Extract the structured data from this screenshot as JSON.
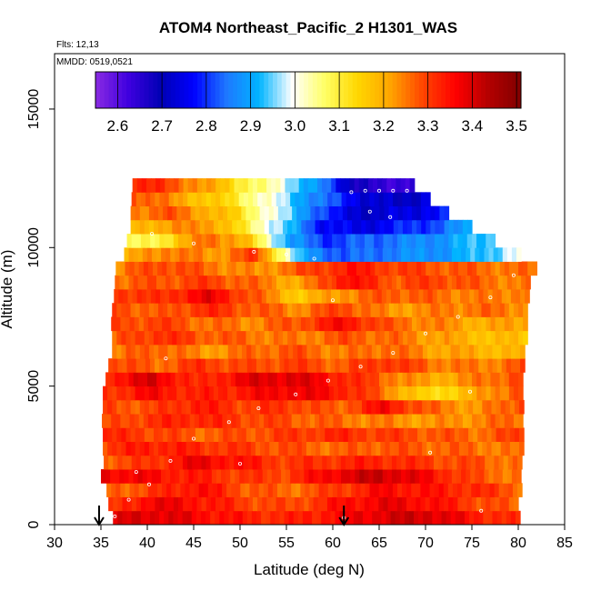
{
  "chart_data": {
    "type": "heatmap",
    "title": "ATOM4 Northeast_Pacific_2 H1301_WAS",
    "subtitle_flights": "Flts: 12,13",
    "subtitle_dates": "MMDD: 0519,0521",
    "xlabel": "Latitude (deg N)",
    "ylabel": "Altitude (m)",
    "xlim": [
      30,
      85
    ],
    "ylim": [
      0,
      17000
    ],
    "xticks": [
      30,
      35,
      40,
      45,
      50,
      55,
      60,
      65,
      70,
      75,
      80,
      85
    ],
    "yticks": [
      0,
      5000,
      10000,
      15000
    ],
    "colorbar": {
      "min": 2.55,
      "max": 3.51,
      "ticks": [
        2.6,
        2.7,
        2.8,
        2.9,
        3.0,
        3.1,
        3.2,
        3.3,
        3.4,
        3.5
      ],
      "tick_labels": [
        "2.6",
        "2.7",
        "2.8",
        "2.9",
        "3.0",
        "3.1",
        "3.2",
        "3.3",
        "3.4",
        "3.5"
      ],
      "colors": [
        "#8a2be2",
        "#3f00e0",
        "#0000b4",
        "#0000ff",
        "#1e78ff",
        "#00b4ff",
        "#ffffff",
        "#ffff66",
        "#ffd700",
        "#ffa500",
        "#ff4500",
        "#ff0000",
        "#b40000",
        "#800000"
      ]
    },
    "rows": [
      {
        "alt": 250,
        "lat": [
          36.3,
          80.2
        ],
        "v": [
          3.38,
          3.4,
          3.36,
          3.33,
          3.32,
          3.36,
          3.4,
          3.41,
          3.34,
          3.3
        ]
      },
      {
        "alt": 750,
        "lat": [
          35.8,
          80.0
        ],
        "v": [
          3.28,
          3.38,
          3.35,
          3.3,
          3.28,
          3.34,
          3.38,
          3.36,
          3.3,
          3.26
        ]
      },
      {
        "alt": 1250,
        "lat": [
          35.6,
          80.4
        ],
        "v": [
          3.26,
          3.3,
          3.36,
          3.28,
          3.26,
          3.3,
          3.36,
          3.34,
          3.32,
          3.27
        ]
      },
      {
        "alt": 1750,
        "lat": [
          35.0,
          80.3
        ],
        "v": [
          3.38,
          3.36,
          3.33,
          3.3,
          3.3,
          3.38,
          3.42,
          3.36,
          3.28,
          3.25
        ]
      },
      {
        "alt": 2250,
        "lat": [
          35.3,
          80.4
        ],
        "v": [
          3.28,
          3.3,
          3.38,
          3.34,
          3.3,
          3.32,
          3.33,
          3.3,
          3.28,
          3.25
        ]
      },
      {
        "alt": 2750,
        "lat": [
          35.2,
          80.6
        ],
        "v": [
          3.3,
          3.34,
          3.32,
          3.3,
          3.28,
          3.26,
          3.28,
          3.27,
          3.26,
          3.24
        ]
      },
      {
        "alt": 3250,
        "lat": [
          35.2,
          80.6
        ],
        "v": [
          3.32,
          3.3,
          3.27,
          3.28,
          3.3,
          3.32,
          3.3,
          3.28,
          3.26,
          3.3
        ]
      },
      {
        "alt": 3750,
        "lat": [
          35.1,
          80.5
        ],
        "v": [
          3.27,
          3.31,
          3.33,
          3.3,
          3.28,
          3.26,
          3.24,
          3.22,
          3.24,
          3.27
        ]
      },
      {
        "alt": 4250,
        "lat": [
          35.2,
          80.6
        ],
        "v": [
          3.29,
          3.28,
          3.34,
          3.3,
          3.31,
          3.26,
          3.36,
          3.26,
          3.22,
          3.3
        ]
      },
      {
        "alt": 4750,
        "lat": [
          35.2,
          80.5
        ],
        "v": [
          3.3,
          3.36,
          3.32,
          3.34,
          3.38,
          3.35,
          3.26,
          3.12,
          3.2,
          3.3
        ]
      },
      {
        "alt": 5250,
        "lat": [
          35.5,
          80.5
        ],
        "v": [
          3.33,
          3.4,
          3.3,
          3.38,
          3.4,
          3.34,
          3.27,
          3.2,
          3.24,
          3.3
        ]
      },
      {
        "alt": 5750,
        "lat": [
          35.8,
          80.7
        ],
        "v": [
          3.3,
          3.26,
          3.31,
          3.28,
          3.3,
          3.27,
          3.32,
          3.26,
          3.24,
          3.28
        ]
      },
      {
        "alt": 6250,
        "lat": [
          36.2,
          80.7
        ],
        "v": [
          3.24,
          3.28,
          3.22,
          3.26,
          3.28,
          3.24,
          3.27,
          3.22,
          3.2,
          3.18
        ]
      },
      {
        "alt": 6750,
        "lat": [
          36.2,
          81.0
        ],
        "v": [
          3.26,
          3.32,
          3.28,
          3.26,
          3.24,
          3.28,
          3.26,
          3.22,
          3.18,
          3.17
        ]
      },
      {
        "alt": 7250,
        "lat": [
          36.1,
          81.0
        ],
        "v": [
          3.28,
          3.3,
          3.26,
          3.24,
          3.28,
          3.36,
          3.27,
          3.24,
          3.2,
          3.22
        ]
      },
      {
        "alt": 7750,
        "lat": [
          36.2,
          81.0
        ],
        "v": [
          3.3,
          3.26,
          3.32,
          3.28,
          3.24,
          3.3,
          3.22,
          3.24,
          3.26,
          3.24
        ]
      },
      {
        "alt": 8250,
        "lat": [
          36.4,
          81.2
        ],
        "v": [
          3.32,
          3.3,
          3.38,
          3.28,
          3.16,
          3.24,
          3.28,
          3.26,
          3.24,
          3.26
        ]
      },
      {
        "alt": 8750,
        "lat": [
          36.5,
          81.3
        ],
        "v": [
          3.26,
          3.28,
          3.3,
          3.26,
          3.2,
          3.36,
          3.28,
          3.3,
          3.26,
          3.24
        ]
      },
      {
        "alt": 9250,
        "lat": [
          36.6,
          82.0
        ],
        "v": [
          3.24,
          3.3,
          3.26,
          3.22,
          3.28,
          3.34,
          3.3,
          3.28,
          3.26,
          3.25
        ]
      },
      {
        "alt": 9750,
        "lat": [
          37.5,
          80.3
        ],
        "v": [
          3.18,
          3.26,
          3.22,
          3.3,
          2.9,
          2.82,
          2.86,
          2.88,
          2.92,
          3.0
        ]
      },
      {
        "alt": 10250,
        "lat": [
          37.8,
          77.5
        ],
        "v": [
          3.05,
          3.12,
          3.28,
          3.16,
          2.88,
          2.8,
          2.84,
          2.86,
          2.9,
          2.95
        ]
      },
      {
        "alt": 10750,
        "lat": [
          38.2,
          75.0
        ],
        "v": [
          3.18,
          3.22,
          3.24,
          3.1,
          2.95,
          2.78,
          2.74,
          2.78,
          2.82,
          2.9
        ]
      },
      {
        "alt": 11250,
        "lat": [
          38.2,
          72.5
        ],
        "v": [
          3.24,
          3.28,
          3.22,
          3.14,
          3.0,
          2.88,
          2.74,
          2.72,
          2.75,
          2.78
        ]
      },
      {
        "alt": 11750,
        "lat": [
          38.3,
          70.5
        ],
        "v": [
          3.3,
          3.24,
          3.18,
          3.12,
          3.02,
          2.92,
          2.82,
          2.74,
          2.7,
          2.75
        ]
      },
      {
        "alt": 12250,
        "lat": [
          38.4,
          68.8
        ],
        "v": [
          3.34,
          3.3,
          3.24,
          3.16,
          3.06,
          2.98,
          2.86,
          2.7,
          2.62,
          2.66
        ]
      }
    ],
    "samples_white_circles": [
      [
        36.5,
        300
      ],
      [
        38.0,
        900
      ],
      [
        40.2,
        1450
      ],
      [
        42.5,
        2300
      ],
      [
        45.0,
        3100
      ],
      [
        48.8,
        3700
      ],
      [
        52.0,
        4200
      ],
      [
        56.0,
        4700
      ],
      [
        59.5,
        5200
      ],
      [
        63.0,
        5700
      ],
      [
        66.5,
        6200
      ],
      [
        70.0,
        6900
      ],
      [
        73.5,
        7500
      ],
      [
        77.0,
        8200
      ],
      [
        79.5,
        9000
      ],
      [
        37.2,
        11500
      ],
      [
        40.5,
        10500
      ],
      [
        45.0,
        10150
      ],
      [
        51.5,
        9850
      ],
      [
        55.0,
        9750
      ],
      [
        58.0,
        9600
      ],
      [
        62.0,
        12000
      ],
      [
        63.5,
        12050
      ],
      [
        65.0,
        12050
      ],
      [
        66.5,
        12050
      ],
      [
        68.0,
        12050
      ],
      [
        64.0,
        11300
      ],
      [
        66.2,
        11100
      ],
      [
        61.2,
        250
      ],
      [
        76.0,
        500
      ],
      [
        42.0,
        6000
      ],
      [
        60.0,
        8100
      ],
      [
        70.5,
        2600
      ],
      [
        74.8,
        4800
      ],
      [
        50.0,
        2200
      ],
      [
        38.8,
        1900
      ]
    ],
    "arrows_lat": [
      34.8,
      61.2
    ]
  }
}
